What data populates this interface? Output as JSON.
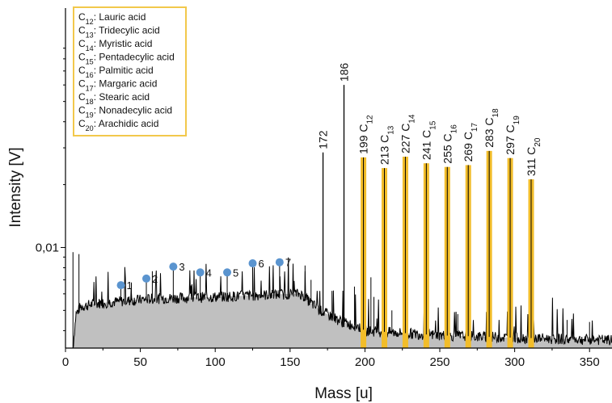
{
  "chart_data": {
    "type": "line",
    "title": "",
    "xlabel": "Mass [u]",
    "ylabel": "Intensity [V]",
    "xlim": [
      0,
      365
    ],
    "yscale": "log",
    "ylim": [
      0.0033,
      0.14
    ],
    "x_ticks": [
      0,
      50,
      100,
      150,
      200,
      250,
      300,
      350
    ],
    "y_ticks": [
      {
        "value": 0.01,
        "label": "0,01"
      }
    ],
    "grid": false,
    "baseline": [
      {
        "x": 5,
        "y": 0.0033
      },
      {
        "x": 7,
        "y": 0.0048
      },
      {
        "x": 10,
        "y": 0.0052
      },
      {
        "x": 20,
        "y": 0.0054
      },
      {
        "x": 60,
        "y": 0.0057
      },
      {
        "x": 100,
        "y": 0.0058
      },
      {
        "x": 150,
        "y": 0.006
      },
      {
        "x": 157,
        "y": 0.006
      },
      {
        "x": 170,
        "y": 0.005
      },
      {
        "x": 185,
        "y": 0.0044
      },
      {
        "x": 195,
        "y": 0.0042
      },
      {
        "x": 200,
        "y": 0.004
      },
      {
        "x": 250,
        "y": 0.0038
      },
      {
        "x": 300,
        "y": 0.0037
      },
      {
        "x": 365,
        "y": 0.0036
      }
    ],
    "peaks": [
      {
        "x": 172,
        "y": 0.0285,
        "label": "172"
      },
      {
        "x": 186,
        "y": 0.06,
        "label": "186"
      }
    ],
    "highlighted_peaks": [
      {
        "x": 199,
        "y": 0.027,
        "mass": "199",
        "sub": "12"
      },
      {
        "x": 213,
        "y": 0.024,
        "mass": "213",
        "sub": "13"
      },
      {
        "x": 227,
        "y": 0.0272,
        "mass": "227",
        "sub": "14"
      },
      {
        "x": 241,
        "y": 0.0253,
        "mass": "241",
        "sub": "15"
      },
      {
        "x": 255,
        "y": 0.0243,
        "mass": "255",
        "sub": "16"
      },
      {
        "x": 269,
        "y": 0.0248,
        "mass": "269",
        "sub": "17"
      },
      {
        "x": 283,
        "y": 0.029,
        "mass": "283",
        "sub": "18"
      },
      {
        "x": 297,
        "y": 0.0268,
        "mass": "297",
        "sub": "19"
      },
      {
        "x": 311,
        "y": 0.0212,
        "mass": "311",
        "sub": "20"
      }
    ],
    "markers": [
      {
        "x": 37,
        "y": 0.0066,
        "label": "1"
      },
      {
        "x": 54,
        "y": 0.0071,
        "label": "2"
      },
      {
        "x": 72,
        "y": 0.0081,
        "label": "3"
      },
      {
        "x": 90,
        "y": 0.0076,
        "label": "4"
      },
      {
        "x": 108,
        "y": 0.0076,
        "label": "5"
      },
      {
        "x": 125,
        "y": 0.0084,
        "label": "6"
      },
      {
        "x": 143,
        "y": 0.0085,
        "label": "7"
      }
    ],
    "legend": {
      "placement": "top-left",
      "entries": [
        {
          "c": "C",
          "sub": "12",
          "name": ": Lauric acid"
        },
        {
          "c": "C",
          "sub": "13",
          "name": ": Tridecylic acid"
        },
        {
          "c": "C",
          "sub": "14",
          "name": ": Myristic acid"
        },
        {
          "c": "C",
          "sub": "15",
          "name": ": Pentadecylic acid"
        },
        {
          "c": "C",
          "sub": "16",
          "name": ": Palmitic acid"
        },
        {
          "c": "C",
          "sub": "17",
          "name": ": Margaric acid"
        },
        {
          "c": "C",
          "sub": "18",
          "name": ": Stearic acid"
        },
        {
          "c": "C",
          "sub": "19",
          "name": ": Nonadecylic acid"
        },
        {
          "c": "C",
          "sub": "20",
          "name": ": Arachidic acid"
        }
      ]
    },
    "colors": {
      "fill": "#c0c0c0",
      "line": "#000000",
      "highlight": "#f2bd2a",
      "marker": "#5a94cf",
      "legend_border": "#f2c84b"
    }
  }
}
